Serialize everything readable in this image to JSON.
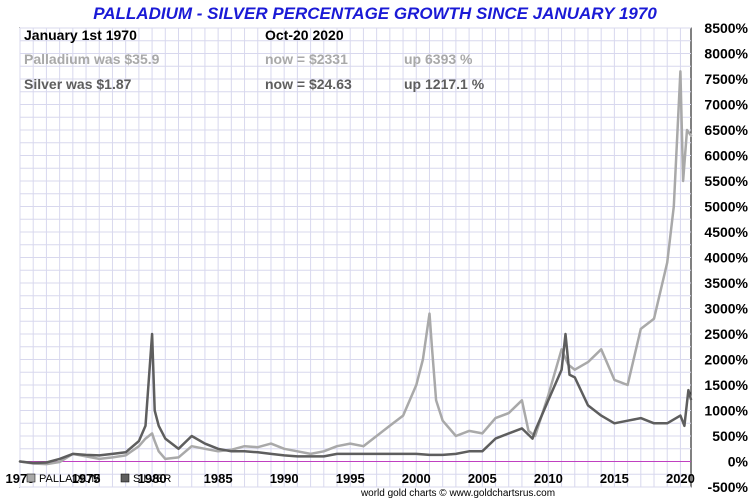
{
  "chart_data": {
    "type": "line",
    "title": "PALLADIUM - SILVER PERCENTAGE GROWTH SINCE JANUARY 1970",
    "xlabel": "",
    "ylabel": "",
    "xlim": [
      1970,
      2020.8
    ],
    "ylim": [
      -500,
      8500
    ],
    "x_ticks": [
      "1970",
      "1975",
      "1980",
      "1985",
      "1990",
      "1995",
      "2000",
      "2005",
      "2010",
      "2015",
      "2020"
    ],
    "y_ticks": [
      "8500%",
      "8000%",
      "7500%",
      "7000%",
      "6500%",
      "6000%",
      "5500%",
      "5000%",
      "4500%",
      "4000%",
      "3500%",
      "3000%",
      "2500%",
      "2000%",
      "1500%",
      "1000%",
      "500%",
      "0%",
      "-500%"
    ],
    "grid": true,
    "legend_position": "bottom-left",
    "series": [
      {
        "name": "PALLADIUM",
        "color": "#a9a9a9",
        "x": [
          1970,
          1971,
          1972,
          1973,
          1974,
          1975,
          1976,
          1977,
          1978,
          1979,
          1979.5,
          1980,
          1980.2,
          1980.5,
          1981,
          1982,
          1983,
          1984,
          1985,
          1986,
          1987,
          1988,
          1989,
          1990,
          1991,
          1992,
          1993,
          1994,
          1995,
          1996,
          1997,
          1998,
          1999,
          2000,
          2000.5,
          2001.0,
          2001.2,
          2001.5,
          2002,
          2003,
          2004,
          2005,
          2006,
          2007,
          2008,
          2008.5,
          2009,
          2010,
          2011,
          2011.5,
          2012,
          2013,
          2014,
          2015,
          2016,
          2017,
          2018,
          2019,
          2019.5,
          2020.0,
          2020.2,
          2020.5,
          2020.8
        ],
        "values": [
          0,
          -40,
          -50,
          -10,
          150,
          100,
          50,
          80,
          120,
          300,
          450,
          550,
          400,
          200,
          50,
          80,
          300,
          250,
          200,
          230,
          300,
          280,
          350,
          250,
          200,
          150,
          200,
          300,
          350,
          300,
          500,
          700,
          900,
          1500,
          2000,
          2900,
          2200,
          1200,
          800,
          500,
          600,
          550,
          850,
          950,
          1200,
          600,
          500,
          1300,
          2200,
          1900,
          1800,
          1950,
          2200,
          1600,
          1500,
          2600,
          2800,
          3900,
          5000,
          7650,
          5500,
          6500,
          6393
        ]
      },
      {
        "name": "SILVER",
        "color": "#5e5e5e",
        "x": [
          1970,
          1971,
          1972,
          1973,
          1974,
          1975,
          1976,
          1977,
          1978,
          1979,
          1979.5,
          1980.0,
          1980.2,
          1980.5,
          1981,
          1982,
          1983,
          1984,
          1985,
          1986,
          1987,
          1988,
          1989,
          1990,
          1991,
          1992,
          1993,
          1994,
          1995,
          1996,
          1997,
          1998,
          1999,
          2000,
          2001,
          2002,
          2003,
          2004,
          2005,
          2006,
          2007,
          2008,
          2008.8,
          2009,
          2010,
          2011,
          2011.3,
          2011.6,
          2012,
          2013,
          2014,
          2015,
          2016,
          2017,
          2018,
          2019,
          2020.0,
          2020.3,
          2020.6,
          2020.8
        ],
        "values": [
          0,
          -30,
          -20,
          50,
          150,
          130,
          120,
          150,
          180,
          400,
          700,
          2500,
          1000,
          700,
          450,
          250,
          500,
          350,
          250,
          200,
          200,
          180,
          150,
          120,
          100,
          100,
          100,
          150,
          150,
          150,
          150,
          150,
          150,
          150,
          130,
          130,
          150,
          200,
          200,
          450,
          550,
          650,
          450,
          600,
          1200,
          1800,
          2500,
          1700,
          1650,
          1100,
          900,
          750,
          800,
          850,
          750,
          750,
          900,
          700,
          1400,
          1217
        ]
      }
    ]
  },
  "info": {
    "start_label": "January 1st 1970",
    "end_label": "Oct-20  2020",
    "palladium": {
      "was": "Palladium was $35.9",
      "now": "now = $2331",
      "up": "up 6393 %"
    },
    "silver": {
      "was": "Silver was $1.87",
      "now": "now = $24.63",
      "up": "up 1217.1 %"
    }
  },
  "legend": {
    "palladium": "PALLADIUM",
    "silver": "SILVER"
  },
  "footer": "world gold charts © www.goldchartsrus.com"
}
